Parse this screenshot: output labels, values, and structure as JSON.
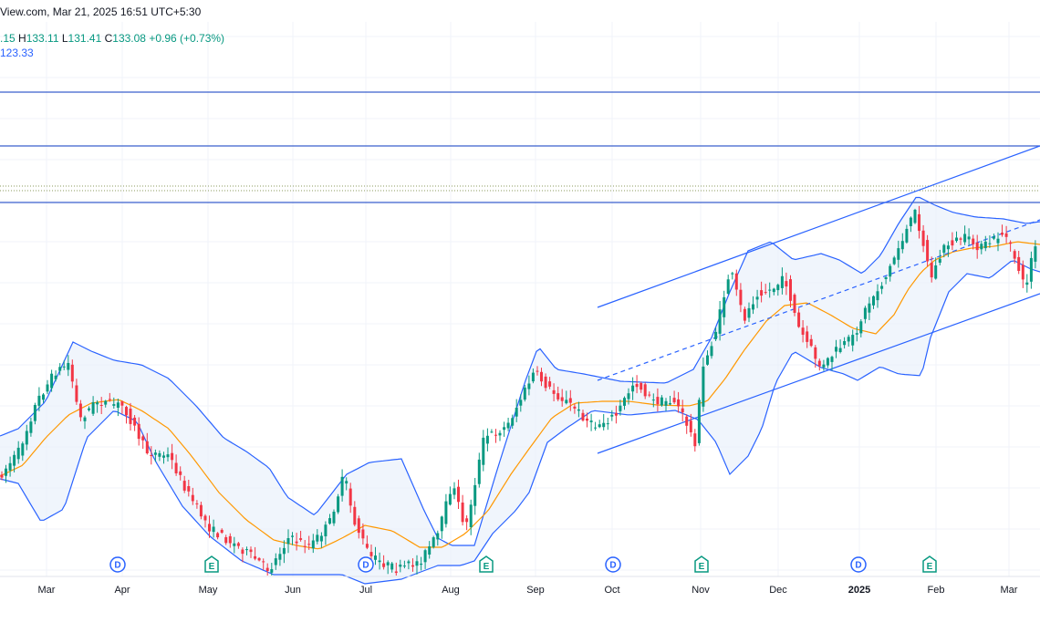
{
  "header": {
    "source_line": "View.com, Mar 21, 2025 16:51 UTC+5:30",
    "ohlc": {
      "open": ".15",
      "high_label": "H",
      "high": "133.11",
      "low_label": "L",
      "low": "131.41",
      "close_label": "C",
      "close": "133.08",
      "change": "+0.96 (+0.73%)"
    },
    "indicator_value": "123.33"
  },
  "colors": {
    "up": "#089981",
    "down": "#f23645",
    "band": "#2962ff",
    "band_fill": "#e8f0fb",
    "basis": "#ff9800",
    "grid": "#f0f3fa"
  },
  "events": [
    {
      "letter": "D",
      "type": "dividend",
      "x_month": "Apr"
    },
    {
      "letter": "E",
      "type": "earnings",
      "x_month": "May"
    },
    {
      "letter": "D",
      "type": "dividend",
      "x_month": "Jul"
    },
    {
      "letter": "E",
      "type": "earnings",
      "x_month": "Aug"
    },
    {
      "letter": "D",
      "type": "dividend",
      "x_month": "Oct"
    },
    {
      "letter": "E",
      "type": "earnings",
      "x_month": "Nov"
    },
    {
      "letter": "D",
      "type": "dividend",
      "x_month": "2025"
    },
    {
      "letter": "E",
      "type": "earnings",
      "x_month": "Feb"
    }
  ],
  "chart_data": {
    "type": "candlestick",
    "period": "2024-02 to 2025-03",
    "x_ticks": [
      "Mar",
      "Apr",
      "May",
      "Jun",
      "Jul",
      "Aug",
      "Sep",
      "Oct",
      "Nov",
      "Dec",
      "2025",
      "Feb",
      "Mar"
    ],
    "bold_ticks": [
      "2025"
    ],
    "last_close": 133.08,
    "horizontal_levels": [
      "upper-resistance",
      "mid-resistance",
      "lower-resistance"
    ],
    "channel": "ascending parallel channel from Sep 2024 to Mar 2025 with dashed midline",
    "indicators": [
      "Bollinger Bands (upper, lower, basis)"
    ]
  }
}
